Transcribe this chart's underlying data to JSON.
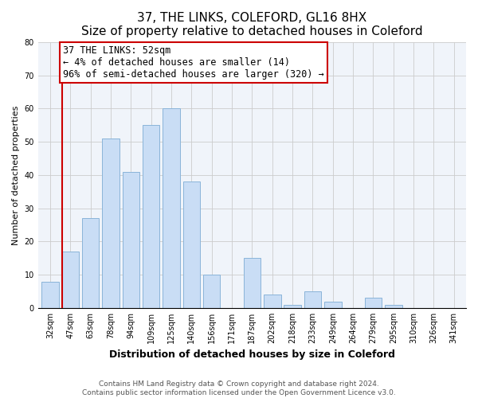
{
  "title": "37, THE LINKS, COLEFORD, GL16 8HX",
  "subtitle": "Size of property relative to detached houses in Coleford",
  "xlabel": "Distribution of detached houses by size in Coleford",
  "ylabel": "Number of detached properties",
  "bar_labels": [
    "32sqm",
    "47sqm",
    "63sqm",
    "78sqm",
    "94sqm",
    "109sqm",
    "125sqm",
    "140sqm",
    "156sqm",
    "171sqm",
    "187sqm",
    "202sqm",
    "218sqm",
    "233sqm",
    "249sqm",
    "264sqm",
    "279sqm",
    "295sqm",
    "310sqm",
    "326sqm",
    "341sqm"
  ],
  "bar_values": [
    8,
    17,
    27,
    51,
    41,
    55,
    60,
    38,
    10,
    0,
    15,
    4,
    1,
    5,
    2,
    0,
    3,
    1,
    0,
    0,
    0
  ],
  "bar_color": "#c9ddf5",
  "bar_edge_color": "#8ab4d9",
  "vline_color": "#cc0000",
  "annotation_text": "37 THE LINKS: 52sqm\n← 4% of detached houses are smaller (14)\n96% of semi-detached houses are larger (320) →",
  "annotation_box_edgecolor": "#cc0000",
  "annotation_box_facecolor": "#ffffff",
  "ylim": [
    0,
    80
  ],
  "yticks": [
    0,
    10,
    20,
    30,
    40,
    50,
    60,
    70,
    80
  ],
  "footer_line1": "Contains HM Land Registry data © Crown copyright and database right 2024.",
  "footer_line2": "Contains public sector information licensed under the Open Government Licence v3.0.",
  "title_fontsize": 11,
  "subtitle_fontsize": 9.5,
  "xlabel_fontsize": 9,
  "ylabel_fontsize": 8,
  "tick_fontsize": 7,
  "annotation_fontsize": 8.5,
  "footer_fontsize": 6.5,
  "bg_color": "#f0f4fa"
}
